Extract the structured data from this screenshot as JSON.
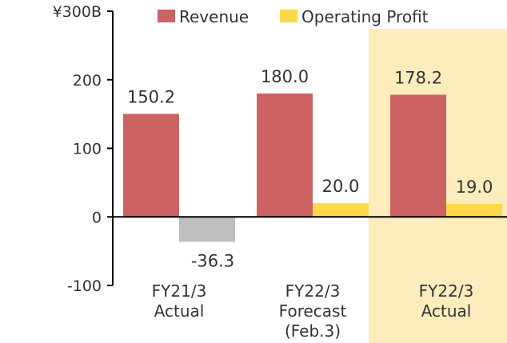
{
  "chart_data": {
    "type": "bar",
    "categories": [
      [
        "FY21/3",
        "Actual"
      ],
      [
        "FY22/3",
        "Forecast",
        "(Feb.3)"
      ],
      [
        "FY22/3",
        "Actual"
      ]
    ],
    "series": [
      {
        "name": "Revenue",
        "values": [
          150.2,
          180.0,
          178.2
        ],
        "labels": [
          "150.2",
          "180.0",
          "178.2"
        ]
      },
      {
        "name": "Operating Profit",
        "values": [
          -36.3,
          20.0,
          19.0
        ],
        "labels": [
          "-36.3",
          "20.0",
          "19.0"
        ]
      }
    ],
    "ylim": [
      -100,
      300
    ],
    "yticks": [
      -100,
      0,
      100,
      200,
      300
    ],
    "ytick_labels": [
      "-100",
      "0",
      "100",
      "200",
      "¥300B"
    ],
    "highlighted_category": 2,
    "legend_position": "top",
    "grid": false
  },
  "colors": {
    "revenue": "#CD6262",
    "operating_profit": "#FFD94A",
    "negative": "#BFBFBF",
    "highlight": "#FDEDBD",
    "axis": "#000000"
  }
}
